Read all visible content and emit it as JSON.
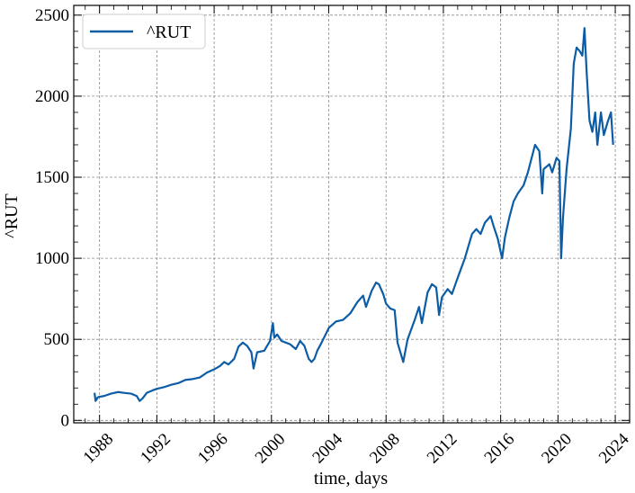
{
  "chart_data": {
    "type": "line",
    "title": "",
    "xlabel": "time, days",
    "ylabel": "^RUT",
    "grid": true,
    "legend": {
      "position": "top-left",
      "entries": [
        "^RUT"
      ]
    },
    "xlim": [
      1986.2,
      2025.0
    ],
    "ylim": [
      -15,
      2560
    ],
    "x_ticks": [
      1988,
      1992,
      1996,
      2000,
      2004,
      2008,
      2012,
      2016,
      2020,
      2024
    ],
    "x_tick_labels": [
      "1988",
      "1992",
      "1996",
      "2000",
      "2004",
      "2008",
      "2012",
      "2016",
      "2020",
      "2024"
    ],
    "y_ticks": [
      0,
      500,
      1000,
      1500,
      2000,
      2500
    ],
    "y_tick_labels": [
      "0",
      "500",
      "1000",
      "1500",
      "2000",
      "2500"
    ],
    "series": [
      {
        "name": "^RUT",
        "color": "#0c5da5",
        "x": [
          1987.65,
          1987.72,
          1987.8,
          1987.85,
          1987.95,
          1988.3,
          1988.8,
          1989.3,
          1989.7,
          1990.2,
          1990.6,
          1990.8,
          1991.0,
          1991.3,
          1991.7,
          1992.0,
          1992.5,
          1993.0,
          1993.5,
          1994.0,
          1994.5,
          1995.0,
          1995.5,
          1996.0,
          1996.4,
          1996.7,
          1997.0,
          1997.4,
          1997.7,
          1998.0,
          1998.3,
          1998.6,
          1998.75,
          1999.0,
          1999.5,
          1999.9,
          2000.1,
          2000.2,
          2000.4,
          2000.7,
          2001.0,
          2001.3,
          2001.7,
          2002.0,
          2002.3,
          2002.6,
          2002.8,
          2003.0,
          2003.2,
          2003.5,
          2004.0,
          2004.5,
          2005.0,
          2005.5,
          2006.0,
          2006.4,
          2006.6,
          2007.0,
          2007.3,
          2007.5,
          2007.8,
          2008.0,
          2008.3,
          2008.6,
          2008.8,
          2009.0,
          2009.2,
          2009.5,
          2010.0,
          2010.3,
          2010.5,
          2010.9,
          2011.2,
          2011.5,
          2011.7,
          2011.9,
          2012.3,
          2012.6,
          2013.0,
          2013.5,
          2014.0,
          2014.3,
          2014.6,
          2014.9,
          2015.3,
          2015.5,
          2015.8,
          2016.1,
          2016.3,
          2016.6,
          2016.9,
          2017.2,
          2017.6,
          2017.9,
          2018.4,
          2018.7,
          2018.9,
          2019.0,
          2019.4,
          2019.6,
          2019.9,
          2020.1,
          2020.22,
          2020.35,
          2020.6,
          2020.9,
          2021.1,
          2021.3,
          2021.5,
          2021.7,
          2021.85,
          2022.0,
          2022.2,
          2022.4,
          2022.6,
          2022.75,
          2023.0,
          2023.2,
          2023.5,
          2023.7,
          2023.85
        ],
        "values": [
          170,
          120,
          130,
          140,
          145,
          150,
          165,
          175,
          170,
          165,
          150,
          120,
          135,
          170,
          185,
          195,
          205,
          220,
          230,
          250,
          255,
          265,
          295,
          315,
          335,
          360,
          345,
          380,
          455,
          480,
          460,
          420,
          320,
          420,
          430,
          490,
          600,
          510,
          530,
          490,
          480,
          470,
          440,
          490,
          460,
          380,
          360,
          380,
          430,
          480,
          570,
          610,
          620,
          660,
          730,
          770,
          700,
          800,
          850,
          840,
          780,
          720,
          690,
          680,
          480,
          420,
          360,
          500,
          620,
          700,
          600,
          790,
          840,
          820,
          650,
          760,
          810,
          780,
          880,
          1000,
          1150,
          1180,
          1150,
          1220,
          1260,
          1200,
          1120,
          1000,
          1130,
          1250,
          1350,
          1400,
          1450,
          1530,
          1700,
          1660,
          1400,
          1550,
          1580,
          1530,
          1620,
          1600,
          1000,
          1250,
          1550,
          1800,
          2200,
          2300,
          2280,
          2250,
          2420,
          2150,
          1850,
          1780,
          1900,
          1700,
          1900,
          1760,
          1850,
          1900,
          1700
        ]
      }
    ]
  }
}
